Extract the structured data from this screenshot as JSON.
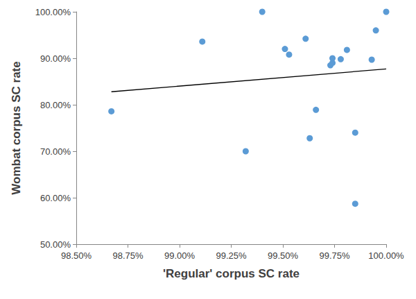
{
  "chart_data": {
    "type": "scatter",
    "xlabel": "'Regular' corpus SC rate",
    "ylabel": "Wombat corpus SC rate",
    "series": [
      {
        "type": "scatter",
        "color": "#5b9bd5",
        "marker": "circle",
        "x": [
          98.67,
          99.11,
          99.32,
          99.4,
          99.51,
          99.53,
          99.61,
          99.63,
          99.66,
          99.73,
          99.74,
          99.74,
          99.78,
          99.81,
          99.85,
          99.85,
          99.93,
          99.95,
          100.0
        ],
        "values": [
          78.6,
          93.6,
          70.0,
          100.0,
          92.0,
          90.8,
          94.2,
          72.8,
          78.9,
          88.5,
          89.0,
          90.0,
          89.8,
          91.8,
          74.0,
          58.7,
          89.7,
          96.0,
          100.0
        ]
      },
      {
        "type": "line",
        "color": "#000000",
        "line_style": "solid",
        "x": [
          98.67,
          100.0
        ],
        "values": [
          82.8,
          87.7
        ]
      }
    ],
    "xlim": [
      98.5,
      100.0
    ],
    "xticks": [
      {
        "value": 98.5,
        "label": "98.50%"
      },
      {
        "value": 98.75,
        "label": "98.75%"
      },
      {
        "value": 99.0,
        "label": "99.00%"
      },
      {
        "value": 99.25,
        "label": "99.25%"
      },
      {
        "value": 99.5,
        "label": "99.50%"
      },
      {
        "value": 99.75,
        "label": "99.75%"
      },
      {
        "value": 100.0,
        "label": "100.00%"
      }
    ],
    "ylim": [
      50,
      100
    ],
    "yticks": [
      {
        "value": 50,
        "label": "50.00%"
      },
      {
        "value": 60,
        "label": "60.00%"
      },
      {
        "value": 70,
        "label": "70.00%"
      },
      {
        "value": 80,
        "label": "80.00%"
      },
      {
        "value": 90,
        "label": "90.00%"
      },
      {
        "value": 100,
        "label": "100.00%"
      }
    ],
    "grid": false
  }
}
